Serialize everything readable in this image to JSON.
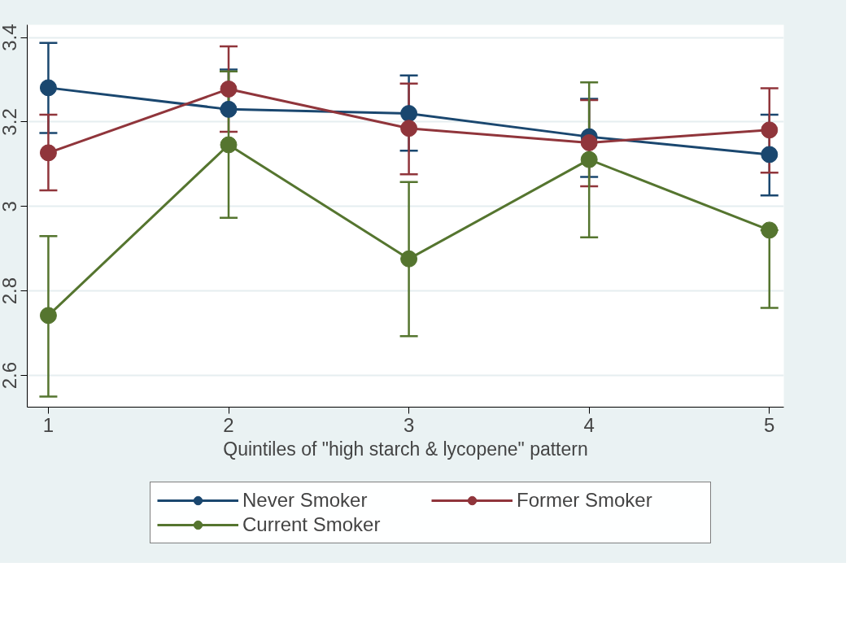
{
  "chart_data": {
    "type": "line",
    "xlabel": "Quintiles of \"high starch & lycopene\" pattern",
    "x": [
      1,
      2,
      3,
      4,
      5
    ],
    "series": [
      {
        "name": "Never Smoker",
        "color": "#1a476f",
        "values": [
          3.281,
          3.23,
          3.22,
          3.165,
          3.123
        ],
        "errors": [
          [
            3.174,
            3.387
          ],
          [
            3.23,
            3.324
          ],
          [
            3.132,
            3.31
          ],
          [
            3.07,
            3.255
          ],
          [
            3.026,
            3.217
          ]
        ]
      },
      {
        "name": "Former Smoker",
        "color": "#90353b",
        "values": [
          3.127,
          3.278,
          3.185,
          3.151,
          3.181
        ],
        "errors": [
          [
            3.038,
            3.217
          ],
          [
            3.177,
            3.379
          ],
          [
            3.076,
            3.291
          ],
          [
            3.048,
            3.252
          ],
          [
            3.08,
            3.28
          ]
        ]
      },
      {
        "name": "Current Smoker",
        "color": "#55752f",
        "values": [
          2.742,
          3.146,
          2.876,
          3.111,
          2.944
        ],
        "errors": [
          [
            2.55,
            2.93
          ],
          [
            2.973,
            3.32
          ],
          [
            2.693,
            3.058
          ],
          [
            2.927,
            3.294
          ],
          [
            2.76,
            2.944
          ]
        ]
      }
    ],
    "xlim": [
      0.883,
      5.08
    ],
    "ylim": [
      2.525,
      3.43
    ],
    "xticks": [
      1,
      2,
      3,
      4,
      5
    ],
    "yticks": [
      2.6,
      2.8,
      3,
      3.2,
      3.4
    ],
    "grid": "y",
    "legend": "bottom",
    "marker": "circle",
    "line_style": "solid"
  }
}
